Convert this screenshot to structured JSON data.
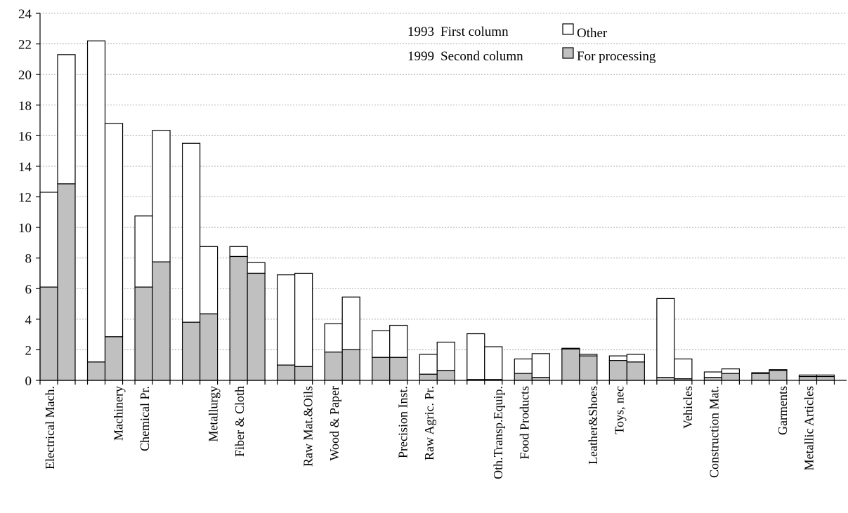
{
  "chart_data": {
    "type": "bar",
    "stacked": true,
    "y_ticks": [
      "0",
      "2",
      "4",
      "6",
      "8",
      "10",
      "12",
      "14",
      "16",
      "18",
      "20",
      "22",
      "24"
    ],
    "ylim": [
      0,
      24
    ],
    "grid": true,
    "legend_position": "top-right",
    "legend": {
      "year_notes": [
        {
          "year": "1993",
          "text": "First column"
        },
        {
          "year": "1999",
          "text": "Second column"
        }
      ],
      "series_labels": [
        "Other",
        "For processing"
      ]
    },
    "colors": {
      "for_processing": "#c0c0c0",
      "other": "#ffffff"
    },
    "categories": [
      "Electrical Mach.",
      "Machinery",
      "Chemical Pr.",
      "Metallurgy",
      "Fiber & Cloth",
      "Raw Mat.&Oils",
      "Wood & Paper",
      "Precision Inst.",
      "Raw Agric. Pr.",
      "Oth.Transp.Equip.",
      "Food Products",
      "Leather&Shoes",
      "Toys, nec",
      "Vehicles",
      "Construction Mat.",
      "Garments",
      "Metallic Articles"
    ],
    "series": [
      {
        "name": "1993",
        "for_processing": [
          6.1,
          1.2,
          6.1,
          3.8,
          8.1,
          1.0,
          1.85,
          1.5,
          0.4,
          0.05,
          0.45,
          2.05,
          1.3,
          0.2,
          0.2,
          0.45,
          0.25
        ],
        "total": [
          12.3,
          22.2,
          10.75,
          15.5,
          8.75,
          6.9,
          3.7,
          3.25,
          1.7,
          3.05,
          1.4,
          2.1,
          1.6,
          5.35,
          0.55,
          0.5,
          0.35
        ]
      },
      {
        "name": "1999",
        "for_processing": [
          12.85,
          2.85,
          7.75,
          4.35,
          7.0,
          0.9,
          2.0,
          1.5,
          0.65,
          0.05,
          0.2,
          1.6,
          1.2,
          0.1,
          0.45,
          0.65,
          0.25
        ],
        "total": [
          21.3,
          16.8,
          16.35,
          8.75,
          7.7,
          7.0,
          5.45,
          3.6,
          2.5,
          2.2,
          1.75,
          1.7,
          1.7,
          1.4,
          0.75,
          0.7,
          0.35
        ]
      }
    ]
  }
}
